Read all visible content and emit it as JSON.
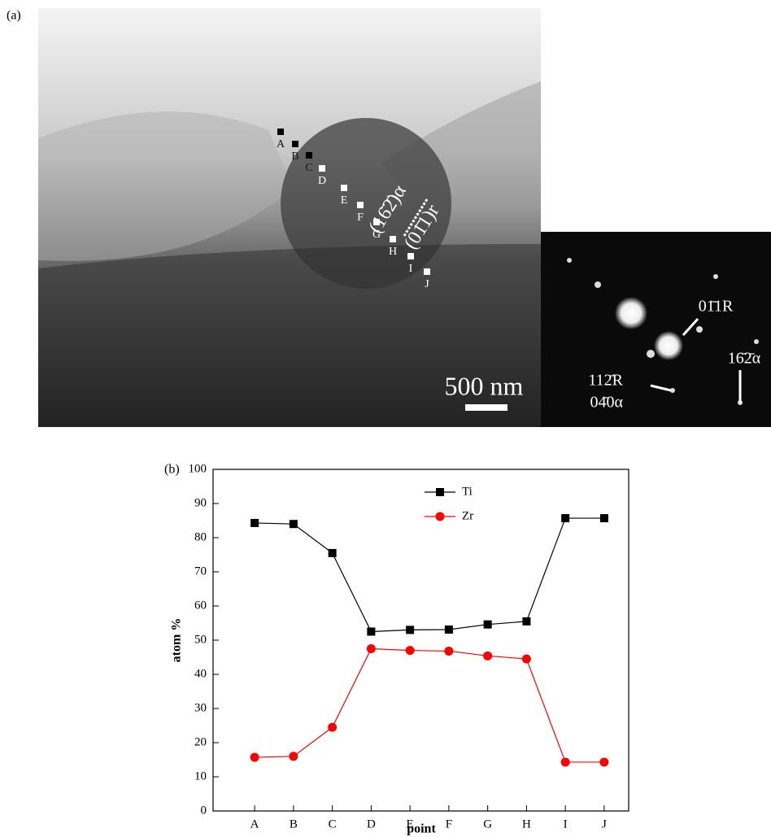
{
  "panel_a": {
    "label": "(a)",
    "points": [
      "A",
      "B",
      "C",
      "D",
      "E",
      "F",
      "G",
      "H",
      "I",
      "J"
    ],
    "plane_alpha": "(16̄2̄)α",
    "plane_r": "(01̄1)r",
    "scale_bar": "500 nm",
    "diffraction": [
      "01̄1R",
      "16̄2̄α",
      "112̄R",
      "04̄0α"
    ]
  },
  "chart_data": {
    "type": "line",
    "panel_label": "(b)",
    "x_label": "point",
    "y_label": "atom %",
    "categories": [
      "A",
      "B",
      "C",
      "D",
      "E",
      "F",
      "G",
      "H",
      "I",
      "J"
    ],
    "series": [
      {
        "name": "Ti",
        "color": "#000000",
        "marker": "square",
        "values": [
          84.3,
          84.0,
          75.5,
          52.5,
          53.0,
          53.1,
          54.6,
          55.5,
          85.7,
          85.7
        ]
      },
      {
        "name": "Zr",
        "color": "#ff0000",
        "marker": "circle",
        "values": [
          15.7,
          16.0,
          24.5,
          47.5,
          47.0,
          46.8,
          45.4,
          44.5,
          14.3,
          14.3
        ]
      }
    ],
    "ylim": [
      0,
      100
    ],
    "yticks": [
      0,
      10,
      20,
      30,
      40,
      50,
      60,
      70,
      80,
      90,
      100
    ],
    "legend": "top"
  }
}
